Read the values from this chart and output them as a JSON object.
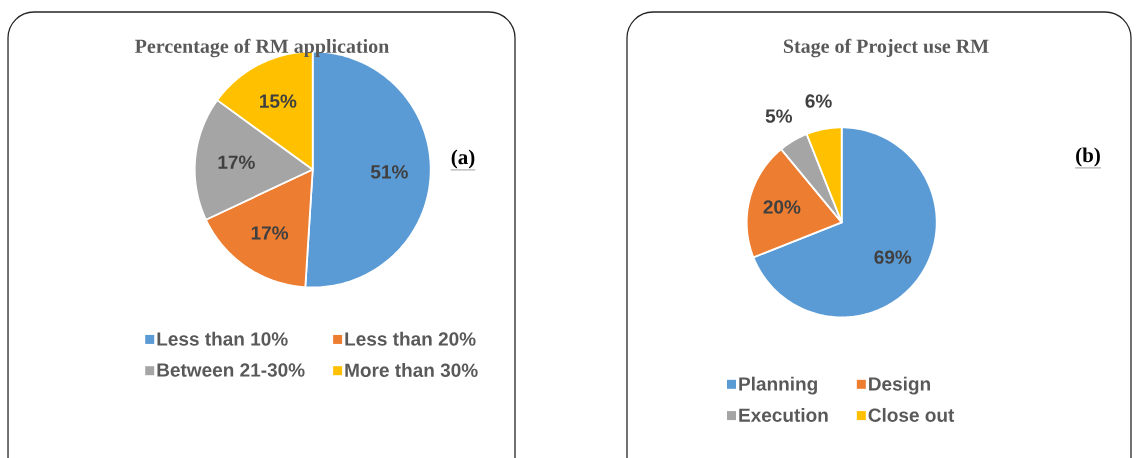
{
  "chart_data": [
    {
      "type": "pie",
      "title": "Percentage of RM application",
      "categories": [
        "Less than 10%",
        "Less than 20%",
        "Between 21-30%",
        "More than 30%"
      ],
      "values": [
        51,
        17,
        17,
        15
      ],
      "colors": [
        "#5b9bd5",
        "#ed7d31",
        "#a5a5a5",
        "#ffc000"
      ],
      "value_labels": [
        "51%",
        "17%",
        "17%",
        "15%"
      ],
      "legend": "bottom",
      "annotations": [
        "(a)"
      ]
    },
    {
      "type": "pie",
      "title": "Stage of Project use RM",
      "categories": [
        "Planning",
        "Design",
        "Execution",
        "Close out"
      ],
      "values": [
        69,
        20,
        5,
        6
      ],
      "colors": [
        "#5b9bd5",
        "#ed7d31",
        "#a5a5a5",
        "#ffc000"
      ],
      "value_labels": [
        "69%",
        "20%",
        "5%",
        "6%"
      ],
      "legend": "bottom",
      "annotations": [
        "(b)"
      ]
    }
  ]
}
